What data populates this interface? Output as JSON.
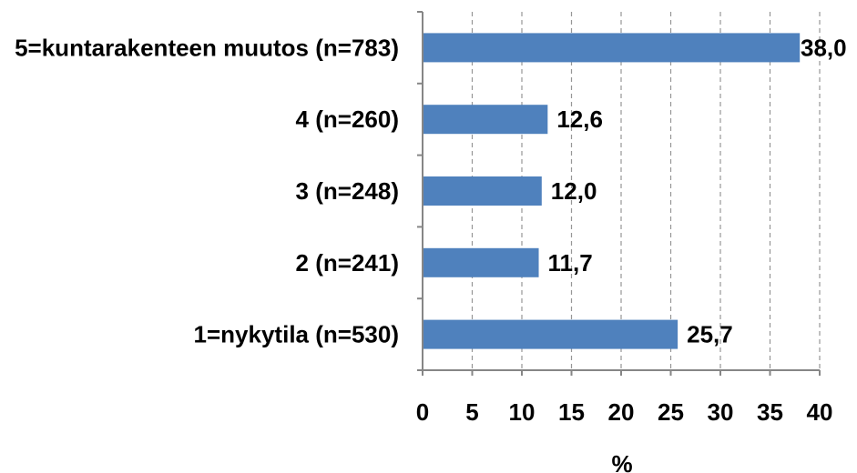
{
  "chart_data": {
    "type": "bar",
    "orientation": "horizontal",
    "categories": [
      "5=kuntarakenteen muutos (n=783)",
      "4 (n=260)",
      "3 (n=248)",
      "2 (n=241)",
      "1=nykytila (n=530)"
    ],
    "values": [
      38.0,
      12.6,
      12.0,
      11.7,
      25.7
    ],
    "data_labels": [
      "38,0",
      "12,6",
      "12,0",
      "11,7",
      "25,7"
    ],
    "title": "",
    "xlabel": "%",
    "ylabel": "",
    "xlim": [
      0,
      40
    ],
    "xticks": [
      0,
      5,
      10,
      15,
      20,
      25,
      30,
      35,
      40
    ],
    "xtick_labels": [
      "0",
      "5",
      "10",
      "15",
      "20",
      "25",
      "30",
      "35",
      "40"
    ],
    "grid": "vertical dashed",
    "legend": "none",
    "bar_color": "#4F81BD",
    "axis_color": "#868686",
    "grid_color": "#969696"
  }
}
